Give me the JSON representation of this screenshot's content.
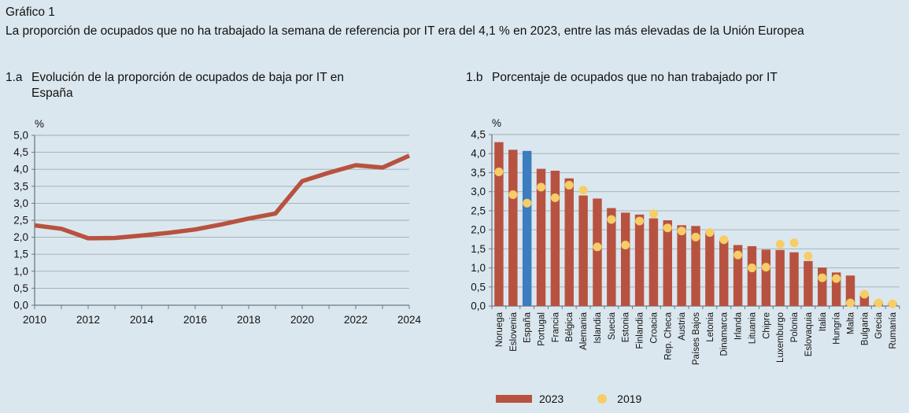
{
  "header": {
    "kicker": "Gráfico 1",
    "title": "La proporción de ocupados que no ha trabajado la semana de referencia por IT era del 4,1 % en 2023, entre las más elevadas de la Unión Europea"
  },
  "panels": {
    "a": {
      "num": "1.a",
      "title": "Evolución de la proporción de ocupados de baja por IT en España"
    },
    "b": {
      "num": "1.b",
      "title": "Porcentaje de ocupados que no han trabajado por IT"
    }
  },
  "legend": {
    "items": [
      {
        "label": "2023",
        "type": "bar"
      },
      {
        "label": "2019",
        "type": "dot"
      }
    ]
  },
  "colors": {
    "background": "#dbe7ee",
    "bar_red": "#b85240",
    "bar_blue": "#3c7cbf",
    "dot_yellow": "#f6cd66",
    "grid": "#a0abb3",
    "axis": "#6e7a84",
    "text": "#111111"
  },
  "chart_data": [
    {
      "id": "line-es",
      "type": "line",
      "title": "1.a Evolución de la proporción de ocupados de baja por IT en España",
      "unit_label": "%",
      "x": [
        2010,
        2011,
        2012,
        2013,
        2014,
        2015,
        2016,
        2017,
        2018,
        2019,
        2020,
        2021,
        2022,
        2023,
        2024
      ],
      "values": [
        2.35,
        2.25,
        1.97,
        1.98,
        2.05,
        2.13,
        2.23,
        2.38,
        2.55,
        2.7,
        3.65,
        3.9,
        4.12,
        4.05,
        4.4
      ],
      "ylim": [
        0,
        5
      ],
      "ytick_step": 0.5,
      "ytick_labels": [
        "0,0",
        "0,5",
        "1,0",
        "1,5",
        "2,0",
        "2,5",
        "3,0",
        "3,5",
        "4,0",
        "4,5",
        "5,0"
      ],
      "xtick_labeled": [
        2010,
        2012,
        2014,
        2016,
        2018,
        2020,
        2022,
        2024
      ],
      "grid": true,
      "line_color": "#b85240"
    },
    {
      "id": "bars-eu",
      "type": "bar",
      "title": "1.b Porcentaje de ocupados que no han trabajado por IT",
      "unit_label": "%",
      "categories": [
        "Noruega",
        "Eslovenia",
        "España",
        "Portugal",
        "Francia",
        "Bélgica",
        "Alemania",
        "Islandia",
        "Suecia",
        "Estonia",
        "Finlandia",
        "Croacia",
        "Rep. Checa",
        "Austria",
        "Países Bajos",
        "Letonia",
        "Dinamarca",
        "Irlanda",
        "Lituania",
        "Chipre",
        "Luxemburgo",
        "Polonia",
        "Eslovaquia",
        "Italia",
        "Hungría",
        "Malta",
        "Bulgaria",
        "Grecia",
        "Rumanía"
      ],
      "series": [
        {
          "name": "2023",
          "type": "bar",
          "color": "#b85240",
          "values": [
            4.3,
            4.1,
            4.07,
            3.6,
            3.55,
            3.35,
            2.9,
            2.82,
            2.57,
            2.45,
            2.4,
            2.3,
            2.25,
            2.12,
            2.1,
            1.95,
            1.72,
            1.6,
            1.57,
            1.48,
            1.47,
            1.41,
            1.18,
            1.01,
            0.88,
            0.8,
            0.27,
            0.1,
            0.08
          ]
        },
        {
          "name": "2019",
          "type": "dot",
          "color": "#f6cd66",
          "values": [
            3.52,
            2.92,
            2.7,
            3.12,
            2.84,
            3.17,
            3.04,
            1.55,
            2.27,
            1.6,
            2.23,
            2.42,
            2.05,
            1.97,
            1.81,
            1.93,
            1.74,
            1.34,
            1.0,
            1.02,
            1.62,
            1.66,
            1.31,
            0.74,
            0.72,
            0.08,
            0.31,
            0.08,
            0.06
          ]
        }
      ],
      "highlight_category": "España",
      "highlight_color": "#3c7cbf",
      "ylim": [
        0,
        4.5
      ],
      "ytick_step": 0.5,
      "ytick_labels": [
        "0,0",
        "0,5",
        "1,0",
        "1,5",
        "2,0",
        "2,5",
        "3,0",
        "3,5",
        "4,0",
        "4,5"
      ],
      "grid": true,
      "legend_position": "bottom"
    }
  ]
}
